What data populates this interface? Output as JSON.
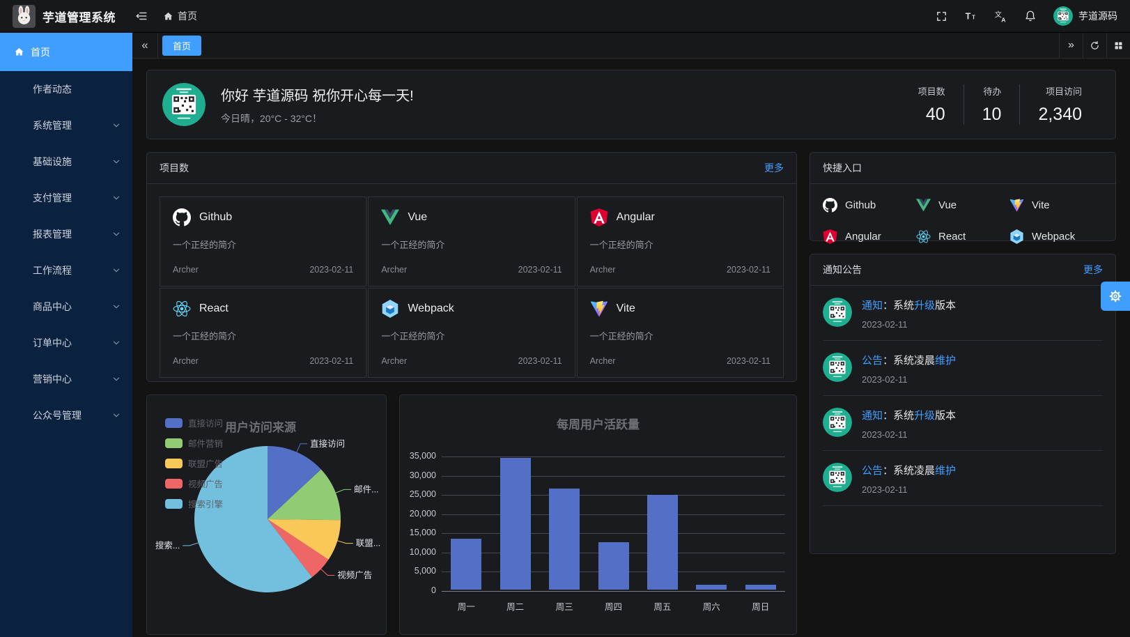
{
  "header": {
    "title": "芋道管理系统",
    "breadcrumb": "首页",
    "username": "芋道源码"
  },
  "sidebar": {
    "items": [
      {
        "label": "首页",
        "active": true,
        "expandable": false
      },
      {
        "label": "作者动态",
        "active": false,
        "expandable": false
      },
      {
        "label": "系统管理",
        "active": false,
        "expandable": true
      },
      {
        "label": "基础设施",
        "active": false,
        "expandable": true
      },
      {
        "label": "支付管理",
        "active": false,
        "expandable": true
      },
      {
        "label": "报表管理",
        "active": false,
        "expandable": true
      },
      {
        "label": "工作流程",
        "active": false,
        "expandable": true
      },
      {
        "label": "商品中心",
        "active": false,
        "expandable": true
      },
      {
        "label": "订单中心",
        "active": false,
        "expandable": true
      },
      {
        "label": "营销中心",
        "active": false,
        "expandable": true
      },
      {
        "label": "公众号管理",
        "active": false,
        "expandable": true
      }
    ]
  },
  "tabbar": {
    "tabs": [
      {
        "label": "首页",
        "active": true
      }
    ]
  },
  "greeting": {
    "title": "你好 芋道源码 祝你开心每一天!",
    "subtitle": "今日晴，20°C - 32°C！",
    "stats": [
      {
        "label": "项目数",
        "value": "40"
      },
      {
        "label": "待办",
        "value": "10"
      },
      {
        "label": "项目访问",
        "value": "2,340"
      }
    ]
  },
  "projects": {
    "title": "项目数",
    "more_label": "更多",
    "items": [
      {
        "name": "Github",
        "icon": "github",
        "desc": "一个正经的简介",
        "author": "Archer",
        "date": "2023-02-11"
      },
      {
        "name": "Vue",
        "icon": "vue",
        "desc": "一个正经的简介",
        "author": "Archer",
        "date": "2023-02-11"
      },
      {
        "name": "Angular",
        "icon": "angular",
        "desc": "一个正经的简介",
        "author": "Archer",
        "date": "2023-02-11"
      },
      {
        "name": "React",
        "icon": "react",
        "desc": "一个正经的简介",
        "author": "Archer",
        "date": "2023-02-11"
      },
      {
        "name": "Webpack",
        "icon": "webpack",
        "desc": "一个正经的简介",
        "author": "Archer",
        "date": "2023-02-11"
      },
      {
        "name": "Vite",
        "icon": "vite",
        "desc": "一个正经的简介",
        "author": "Archer",
        "date": "2023-02-11"
      }
    ]
  },
  "shortcuts": {
    "title": "快捷入口",
    "items": [
      {
        "name": "Github",
        "icon": "github"
      },
      {
        "name": "Vue",
        "icon": "vue"
      },
      {
        "name": "Vite",
        "icon": "vite"
      },
      {
        "name": "Angular",
        "icon": "angular"
      },
      {
        "name": "React",
        "icon": "react"
      },
      {
        "name": "Webpack",
        "icon": "webpack"
      }
    ]
  },
  "notices": {
    "title": "通知公告",
    "more_label": "更多",
    "items": [
      {
        "segments": [
          {
            "text": "通知",
            "hl": true
          },
          {
            "text": "：系统",
            "hl": false
          },
          {
            "text": "升级",
            "hl": true
          },
          {
            "text": "版本",
            "hl": false
          }
        ],
        "date": "2023-02-11"
      },
      {
        "segments": [
          {
            "text": "公告",
            "hl": true
          },
          {
            "text": "：系统凌晨",
            "hl": false
          },
          {
            "text": "维护",
            "hl": true
          }
        ],
        "date": "2023-02-11"
      },
      {
        "segments": [
          {
            "text": "通知",
            "hl": true
          },
          {
            "text": "：系统",
            "hl": false
          },
          {
            "text": "升级",
            "hl": true
          },
          {
            "text": "版本",
            "hl": false
          }
        ],
        "date": "2023-02-11"
      },
      {
        "segments": [
          {
            "text": "公告",
            "hl": true
          },
          {
            "text": "：系统凌晨",
            "hl": false
          },
          {
            "text": "维护",
            "hl": true
          }
        ],
        "date": "2023-02-11"
      }
    ]
  },
  "chart_data": [
    {
      "type": "pie",
      "title": "用户访问来源",
      "legend_position": "left",
      "labels": [
        "直接访问",
        "邮件营销",
        "联盟广告",
        "视频广告",
        "搜索引擎"
      ],
      "display_labels": [
        "直接访问",
        "邮件...",
        "联盟...",
        "视频广告",
        "搜索..."
      ],
      "values": [
        335,
        310,
        234,
        135,
        1548
      ],
      "colors": [
        "#5470c6",
        "#91cc75",
        "#fac858",
        "#ee6666",
        "#73c0de"
      ]
    },
    {
      "type": "bar",
      "title": "每周用户活跃量",
      "categories": [
        "周一",
        "周二",
        "周三",
        "周四",
        "周五",
        "周六",
        "周日"
      ],
      "values": [
        13253,
        34235,
        26321,
        12340,
        24643,
        1322,
        1324
      ],
      "ylim": [
        0,
        35000
      ],
      "ytick_step": 5000,
      "bar_color": "#5470c6",
      "grid": true
    }
  ],
  "settings": {
    "gear": "settings"
  }
}
